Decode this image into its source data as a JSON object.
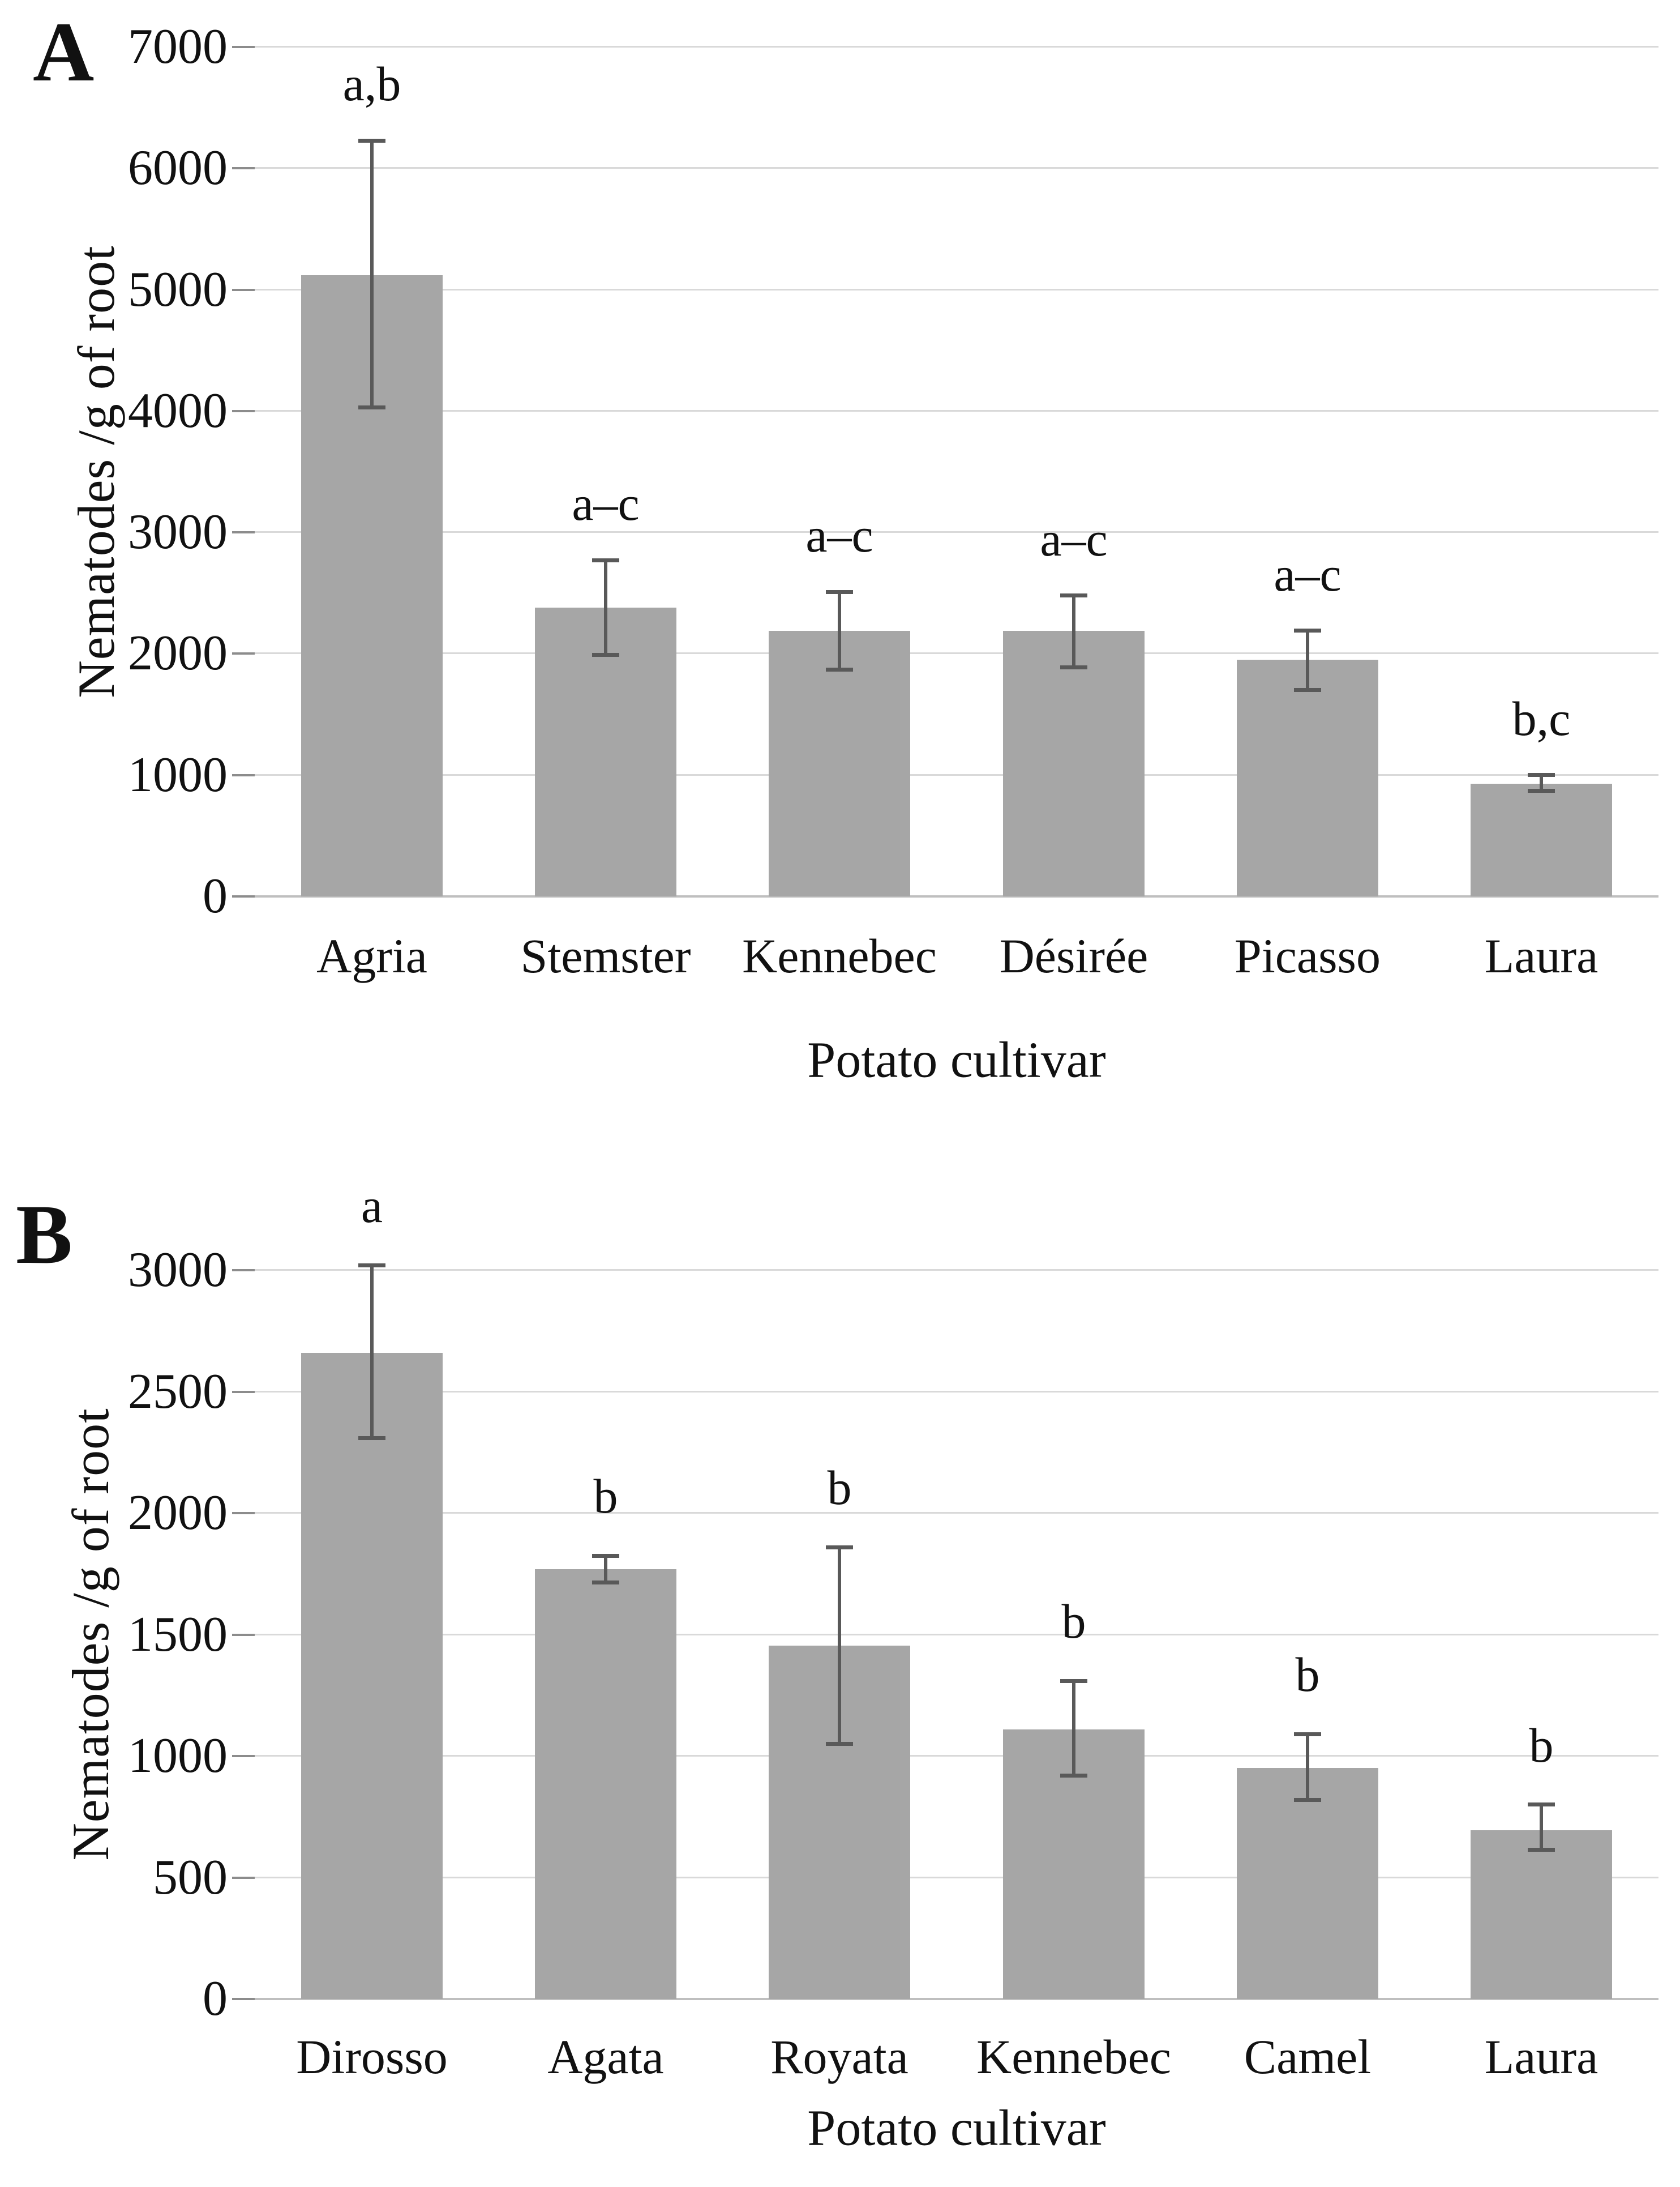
{
  "figure": {
    "background": "#ffffff"
  },
  "colors": {
    "bar_fill": "#a6a6a6",
    "gridline": "#d9d9d9",
    "axis_baseline": "#bfbfbf",
    "tick_mark": "#8c8c8c",
    "error_bar": "#595959",
    "text": "#111111"
  },
  "chart_data": [
    {
      "type": "bar",
      "panel_letter": "A",
      "title": "",
      "xlabel": "Potato cultivar",
      "ylabel": "Nematodes /g of root",
      "categories": [
        "Agria",
        "Stemster",
        "Kennebec",
        "Désirée",
        "Picasso",
        "Laura"
      ],
      "values": [
        5120,
        2380,
        2190,
        2190,
        1950,
        930
      ],
      "error_high": [
        6230,
        2770,
        2510,
        2480,
        2190,
        1000
      ],
      "error_low": [
        4030,
        1990,
        1870,
        1890,
        1700,
        870
      ],
      "sig_letters": [
        "a,b",
        "a–c",
        "a–c",
        "a–c",
        "a–c",
        "b,c"
      ],
      "ylim": [
        0,
        7000
      ],
      "yticks": [
        0,
        1000,
        2000,
        3000,
        4000,
        5000,
        6000,
        7000
      ],
      "grid": true,
      "legend": "none"
    },
    {
      "type": "bar",
      "panel_letter": "B",
      "title": "",
      "xlabel": "Potato cultivar",
      "ylabel": "Nematodes /g of root",
      "categories": [
        "Dirosso",
        "Agata",
        "Royata",
        "Kennebec",
        "Camel",
        "Laura"
      ],
      "values": [
        2660,
        1770,
        1455,
        1110,
        950,
        695
      ],
      "error_high": [
        3020,
        1825,
        1860,
        1310,
        1090,
        800
      ],
      "error_low": [
        2310,
        1715,
        1050,
        920,
        820,
        615
      ],
      "sig_letters": [
        "a",
        "b",
        "b",
        "b",
        "b",
        "b"
      ],
      "ylim": [
        0,
        3000
      ],
      "yticks": [
        0,
        500,
        1000,
        1500,
        2000,
        2500,
        3000
      ],
      "grid": true,
      "legend": "none"
    }
  ]
}
